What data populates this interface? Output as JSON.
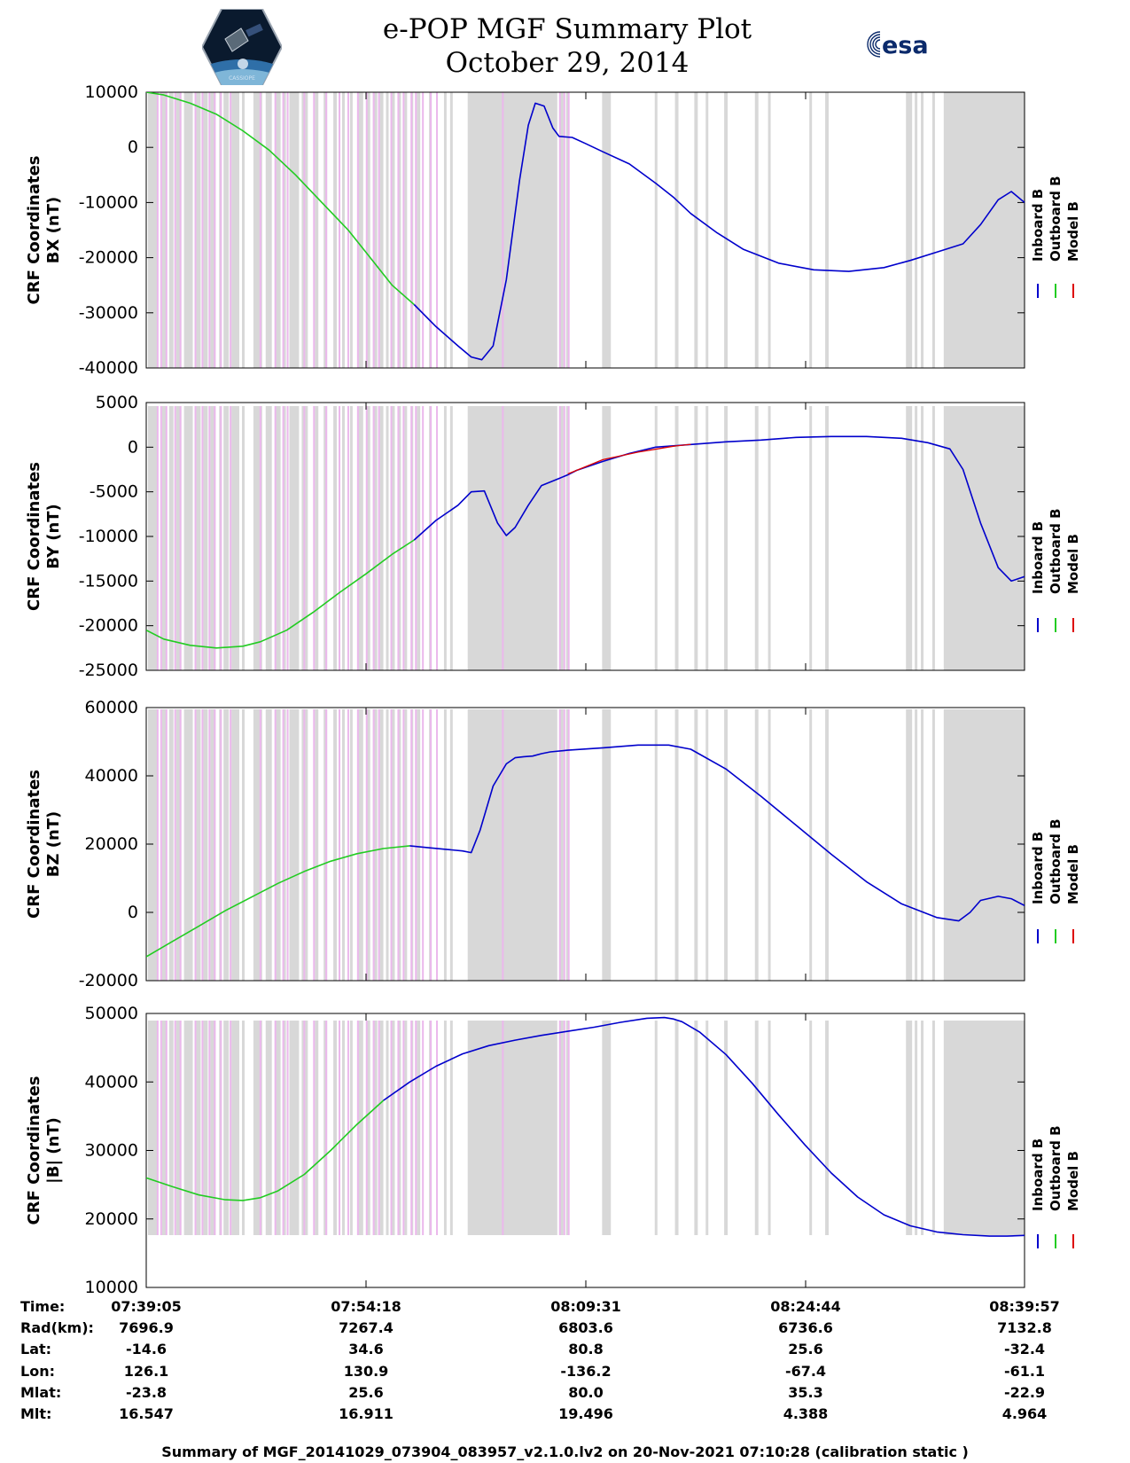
{
  "header": {
    "title_line1": "e-POP MGF Summary Plot",
    "title_line2": "October 29, 2014",
    "logo_right_text": "esa",
    "logo_left_text": "CASSIOPE"
  },
  "colors": {
    "inboard": "#0000cc",
    "outboard": "#22cc22",
    "model": "#dd0000",
    "shade_gray": "#d8d8d8",
    "shade_pink": "#ebb8ec"
  },
  "chart_data": [
    {
      "type": "line",
      "ylabel": [
        "CRF Coordinates",
        "BX (nT)"
      ],
      "ylim": [
        -40000,
        10000
      ],
      "yticks": [
        10000,
        0,
        -10000,
        -20000,
        -30000,
        -40000
      ],
      "legend": [
        "Inboard B",
        "Outboard B",
        "Model B"
      ],
      "xlim": [
        0,
        100
      ],
      "series": [
        {
          "name": "Outboard B",
          "color": "#22cc22",
          "x": [
            0,
            2,
            5,
            8,
            11,
            14,
            17,
            20,
            23,
            25,
            28,
            30.5
          ],
          "y": [
            10000,
            9500,
            8000,
            6000,
            3000,
            -500,
            -5000,
            -10000,
            -15000,
            -19000,
            -25000,
            -28500
          ]
        },
        {
          "name": "Inboard B",
          "color": "#0000cc",
          "x": [
            30.5,
            33,
            35.5,
            37,
            38.2,
            39.5,
            41,
            42.5,
            43.5,
            44.3,
            45.3,
            46.3,
            47,
            48.5,
            50,
            52,
            55,
            58,
            60,
            62,
            65,
            68,
            72,
            76,
            80,
            84,
            87,
            90,
            93,
            95,
            97,
            98.5,
            100
          ],
          "y": [
            -28500,
            -32500,
            -36000,
            -38000,
            -38500,
            -36000,
            -24000,
            -6000,
            4000,
            8000,
            7500,
            3500,
            2000,
            1800,
            700,
            -800,
            -3000,
            -6500,
            -9000,
            -12000,
            -15500,
            -18500,
            -21000,
            -22200,
            -22500,
            -21800,
            -20500,
            -19000,
            -17500,
            -14000,
            -9500,
            -8000,
            -10000
          ]
        }
      ]
    },
    {
      "type": "line",
      "ylabel": [
        "CRF Coordinates",
        "BY (nT)"
      ],
      "ylim": [
        -25000,
        5000
      ],
      "yticks": [
        5000,
        0,
        -5000,
        -10000,
        -15000,
        -20000,
        -25000
      ],
      "legend": [
        "Inboard B",
        "Outboard B",
        "Model B"
      ],
      "xlim": [
        0,
        100
      ],
      "series": [
        {
          "name": "Outboard B",
          "color": "#22cc22",
          "x": [
            0,
            2,
            5,
            8,
            11,
            13,
            16,
            19,
            22,
            25,
            28,
            30.5
          ],
          "y": [
            -20500,
            -21500,
            -22200,
            -22500,
            -22300,
            -21800,
            -20500,
            -18500,
            -16300,
            -14200,
            -12000,
            -10400
          ]
        },
        {
          "name": "Inboard B",
          "color": "#0000cc",
          "x": [
            30.5,
            33,
            35.5,
            37,
            38.5,
            40,
            41,
            42,
            43.5,
            45,
            47,
            48,
            49,
            52,
            55,
            58,
            62,
            66,
            70,
            74,
            78,
            82,
            86,
            89,
            91.5,
            93,
            95,
            97,
            98.5,
            100
          ],
          "y": [
            -10400,
            -8200,
            -6500,
            -5000,
            -4900,
            -8500,
            -9900,
            -9000,
            -6500,
            -4300,
            -3500,
            -3100,
            -2600,
            -1600,
            -700,
            0,
            300,
            600,
            800,
            1100,
            1200,
            1200,
            1000,
            500,
            -200,
            -2500,
            -8500,
            -13500,
            -15000,
            -14500
          ]
        },
        {
          "name": "Model B",
          "color": "#dd0000",
          "x": [
            48,
            52,
            56,
            60,
            62
          ],
          "y": [
            -3000,
            -1400,
            -550,
            100,
            320
          ]
        }
      ]
    },
    {
      "type": "line",
      "ylabel": [
        "CRF Coordinates",
        "BZ (nT)"
      ],
      "ylim": [
        -20000,
        60000
      ],
      "yticks": [
        60000,
        40000,
        20000,
        0,
        -20000
      ],
      "legend": [
        "Inboard B",
        "Outboard B",
        "Model B"
      ],
      "xlim": [
        0,
        100
      ],
      "series": [
        {
          "name": "Outboard B",
          "color": "#22cc22",
          "x": [
            0,
            3,
            6,
            9,
            12,
            15,
            18,
            21,
            24,
            27,
            30
          ],
          "y": [
            -13000,
            -8500,
            -4000,
            500,
            4500,
            8500,
            12000,
            15000,
            17200,
            18700,
            19500
          ]
        },
        {
          "name": "Inboard B",
          "color": "#0000cc",
          "x": [
            30,
            32,
            34,
            36,
            37,
            38,
            39.5,
            41,
            42,
            43,
            44,
            45,
            46,
            48,
            52,
            56,
            59.5,
            62,
            66,
            70,
            74,
            78,
            82,
            86,
            90,
            92.5,
            93.8,
            95,
            97,
            98.5,
            100
          ],
          "y": [
            19500,
            19000,
            18500,
            18000,
            17500,
            24000,
            37000,
            43500,
            45300,
            45600,
            45800,
            46500,
            47000,
            47500,
            48200,
            49000,
            49000,
            47800,
            42000,
            34000,
            25500,
            17000,
            9000,
            2500,
            -1500,
            -2500,
            0,
            3500,
            4700,
            4000,
            2000
          ]
        }
      ]
    },
    {
      "type": "line",
      "ylabel": [
        "CRF Coordinates",
        "|B| (nT)"
      ],
      "ylim": [
        10000,
        50000
      ],
      "yticks": [
        50000,
        40000,
        30000,
        20000,
        10000
      ],
      "legend": [
        "Inboard B",
        "Outboard B",
        "Model B"
      ],
      "xlim": [
        0,
        100
      ],
      "series": [
        {
          "name": "Outboard B",
          "color": "#22cc22",
          "x": [
            0,
            3,
            6,
            9,
            11,
            13,
            15,
            18,
            21,
            24,
            27
          ],
          "y": [
            26000,
            24700,
            23500,
            22800,
            22700,
            23100,
            24100,
            26500,
            30000,
            33800,
            37300
          ]
        },
        {
          "name": "Inboard B",
          "color": "#0000cc",
          "x": [
            27,
            30,
            33,
            36,
            39,
            42,
            45,
            48,
            51,
            54,
            57,
            59,
            60,
            61,
            63,
            66,
            69,
            72,
            75,
            78,
            81,
            84,
            87,
            90,
            93,
            96,
            98,
            100
          ],
          "y": [
            37300,
            40000,
            42300,
            44100,
            45300,
            46100,
            46800,
            47400,
            48000,
            48700,
            49300,
            49400,
            49200,
            48800,
            47300,
            44000,
            39800,
            35200,
            30800,
            26700,
            23200,
            20600,
            19000,
            18100,
            17700,
            17500,
            17500,
            17600
          ]
        }
      ]
    }
  ],
  "shading": {
    "gray": [
      [
        0.2,
        1.3
      ],
      [
        1.8,
        2.3
      ],
      [
        2.6,
        3.1
      ],
      [
        3.4,
        4.0
      ],
      [
        4.3,
        5.3
      ],
      [
        5.7,
        6.2
      ],
      [
        6.5,
        7.0
      ],
      [
        7.3,
        7.9
      ],
      [
        8.3,
        8.6
      ],
      [
        8.8,
        9.4
      ],
      [
        9.7,
        10.6
      ],
      [
        10.9,
        11.2
      ],
      [
        12.2,
        13.2
      ],
      [
        13.6,
        14.3
      ],
      [
        14.7,
        15.3
      ],
      [
        15.7,
        15.9
      ],
      [
        16.3,
        17.4
      ],
      [
        17.7,
        18.4
      ],
      [
        19.2,
        19.6
      ],
      [
        20.2,
        20.6
      ],
      [
        21.3,
        21.7
      ],
      [
        22.3,
        22.6
      ],
      [
        23.2,
        23.5
      ],
      [
        24.1,
        24.7
      ],
      [
        25.1,
        25.5
      ],
      [
        25.8,
        26.3
      ],
      [
        26.6,
        27.0
      ],
      [
        27.3,
        27.6
      ],
      [
        27.9,
        28.3
      ],
      [
        28.7,
        29.0
      ],
      [
        29.4,
        29.7
      ],
      [
        30.1,
        30.4
      ],
      [
        30.8,
        31.2
      ],
      [
        32.2,
        32.5
      ],
      [
        33.9,
        34.2
      ],
      [
        34.6,
        34.9
      ],
      [
        36.6,
        46.8
      ],
      [
        47.1,
        47.5
      ],
      [
        47.8,
        48.1
      ],
      [
        51.9,
        52.9
      ],
      [
        57.9,
        58.2
      ],
      [
        60.2,
        60.6
      ],
      [
        62.4,
        62.8
      ],
      [
        63.7,
        64.0
      ],
      [
        65.8,
        66.2
      ],
      [
        69.3,
        69.7
      ],
      [
        70.8,
        71.1
      ],
      [
        75.5,
        75.8
      ],
      [
        77.3,
        77.7
      ],
      [
        86.5,
        87.2
      ],
      [
        87.5,
        87.8
      ],
      [
        88.2,
        88.5
      ],
      [
        89.5,
        89.8
      ],
      [
        90.8,
        100
      ]
    ],
    "pink": [
      [
        1.2
      ],
      [
        1.6
      ],
      [
        2.2
      ],
      [
        3.2
      ],
      [
        3.8
      ],
      [
        5.5
      ],
      [
        6.3
      ],
      [
        7.1
      ],
      [
        7.7
      ],
      [
        8.4
      ],
      [
        9.5
      ],
      [
        12.9
      ],
      [
        14.6
      ],
      [
        15.5
      ],
      [
        16.0
      ],
      [
        17.9
      ],
      [
        19.0
      ],
      [
        20.4
      ],
      [
        21.9
      ],
      [
        22.9
      ],
      [
        24.0
      ],
      [
        25.0
      ],
      [
        25.8
      ],
      [
        26.4
      ],
      [
        27.8
      ],
      [
        28.6
      ],
      [
        29.2
      ],
      [
        30.1
      ],
      [
        30.6
      ],
      [
        31.4
      ],
      [
        32.3
      ],
      [
        33.0
      ],
      [
        40.5
      ],
      [
        47.0
      ],
      [
        47.5
      ],
      [
        48.0
      ]
    ]
  },
  "xaxis": {
    "row_labels": [
      "Time:",
      "Rad(km):",
      "Lat:",
      "Lon:",
      "Mlat:",
      "Mlt:"
    ],
    "columns": [
      [
        "07:39:05",
        "7696.9",
        "-14.6",
        "126.1",
        "-23.8",
        "16.547"
      ],
      [
        "07:54:18",
        "7267.4",
        "34.6",
        "130.9",
        "25.6",
        "16.911"
      ],
      [
        "08:09:31",
        "6803.6",
        "80.8",
        "-136.2",
        "80.0",
        "19.496"
      ],
      [
        "08:24:44",
        "6736.6",
        "25.6",
        "-67.4",
        "35.3",
        "4.388"
      ],
      [
        "08:39:57",
        "7132.8",
        "-32.4",
        "-61.1",
        "-22.9",
        "4.964"
      ]
    ]
  },
  "footer": {
    "summary": "Summary of MGF_20141029_073904_083957_v2.1.0.lv2 on 20-Nov-2021 07:10:28 (calibration static )"
  }
}
